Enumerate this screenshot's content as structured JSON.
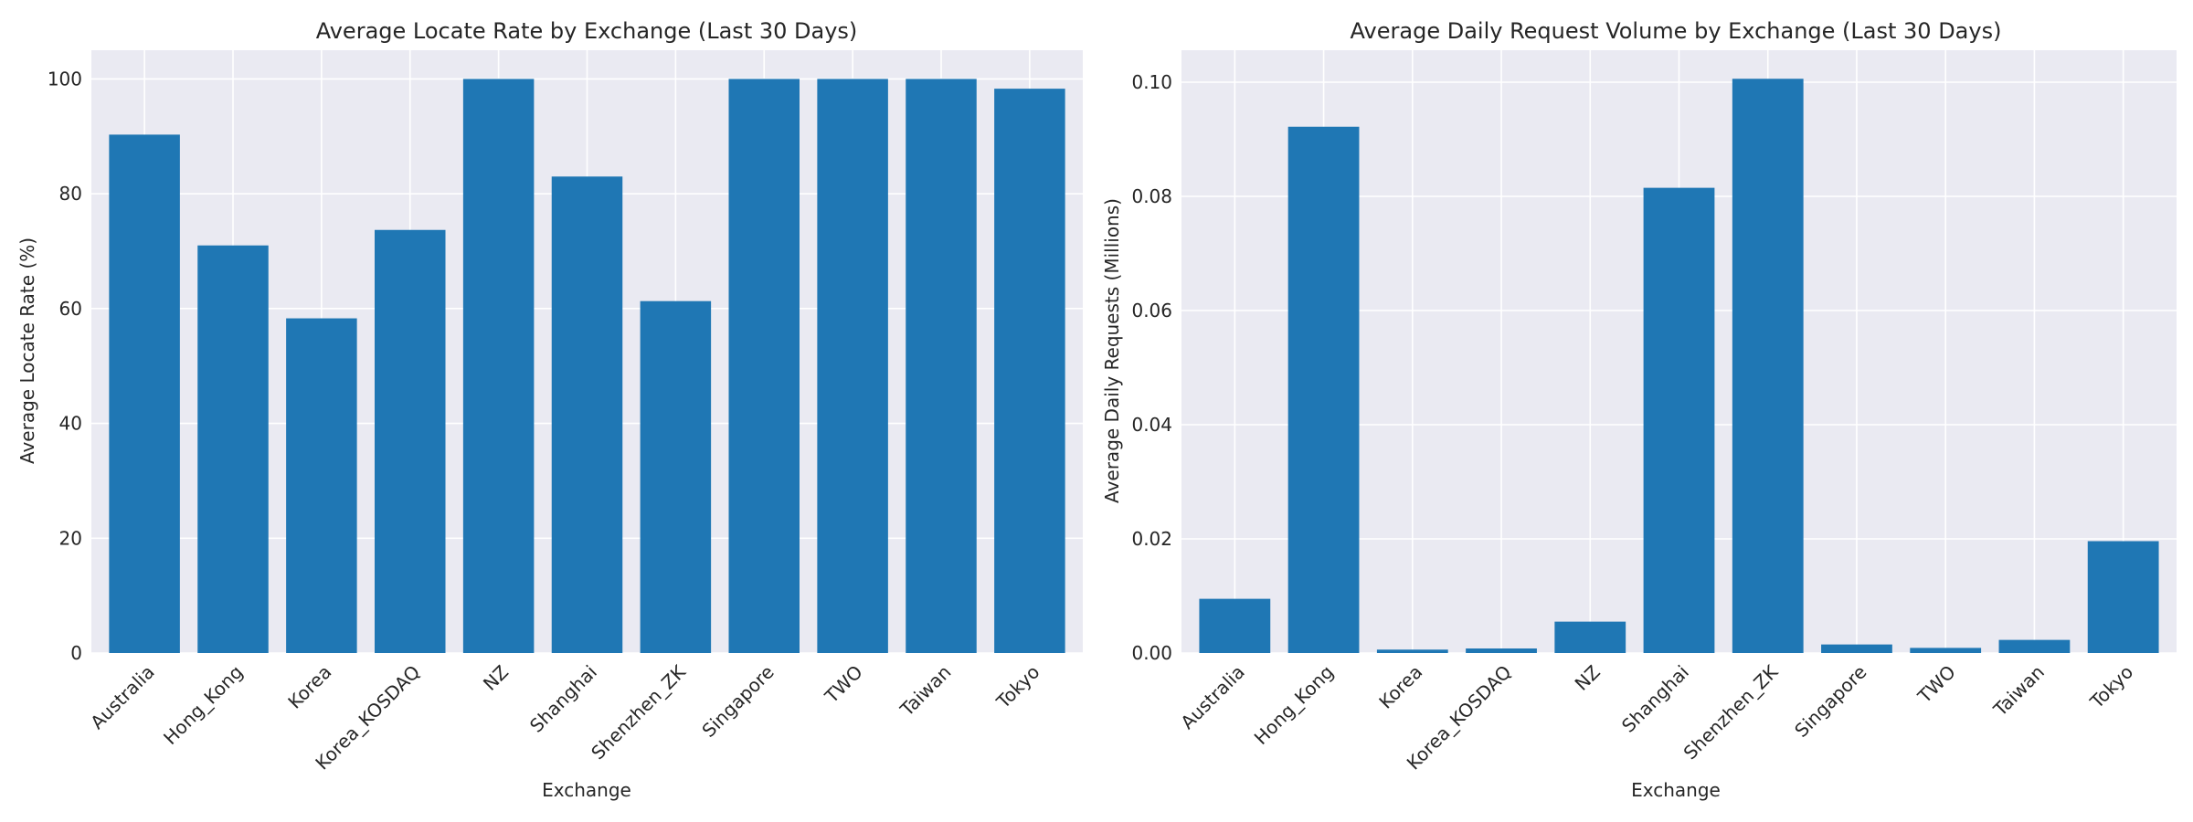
{
  "chart_data": [
    {
      "type": "bar",
      "title": "Average Locate Rate by Exchange (Last 30 Days)",
      "xlabel": "Exchange",
      "ylabel": "Average Locate Rate (%)",
      "categories": [
        "Australia",
        "Hong_Kong",
        "Korea",
        "Korea_KOSDAQ",
        "NZ",
        "Shanghai",
        "Shenzhen_ZK",
        "Singapore",
        "TWO",
        "Taiwan",
        "Tokyo"
      ],
      "values": [
        90.3,
        71.0,
        58.3,
        73.7,
        100.0,
        83.0,
        61.3,
        100.0,
        100.0,
        100.0,
        98.3
      ],
      "ylim": [
        0,
        105
      ],
      "yticks": [
        0,
        20,
        40,
        60,
        80,
        100
      ],
      "ytick_labels": [
        "0",
        "20",
        "40",
        "60",
        "80",
        "100"
      ],
      "grid": true,
      "bar_color": "#1f77b4"
    },
    {
      "type": "bar",
      "title": "Average Daily Request Volume by Exchange (Last 30 Days)",
      "xlabel": "Exchange",
      "ylabel": "Average Daily Requests (Millions)",
      "categories": [
        "Australia",
        "Hong_Kong",
        "Korea",
        "Korea_KOSDAQ",
        "NZ",
        "Shanghai",
        "Shenzhen_ZK",
        "Singapore",
        "TWO",
        "Taiwan",
        "Tokyo"
      ],
      "values": [
        0.0095,
        0.0922,
        0.0006,
        0.0008,
        0.0055,
        0.0815,
        0.1006,
        0.0015,
        0.0009,
        0.0023,
        0.0196
      ],
      "ylim": [
        0,
        0.1056
      ],
      "yticks": [
        0,
        0.02,
        0.04,
        0.06,
        0.08,
        0.1
      ],
      "ytick_labels": [
        "0.00",
        "0.02",
        "0.04",
        "0.06",
        "0.08",
        "0.10"
      ],
      "grid": true,
      "bar_color": "#1f77b4"
    }
  ]
}
